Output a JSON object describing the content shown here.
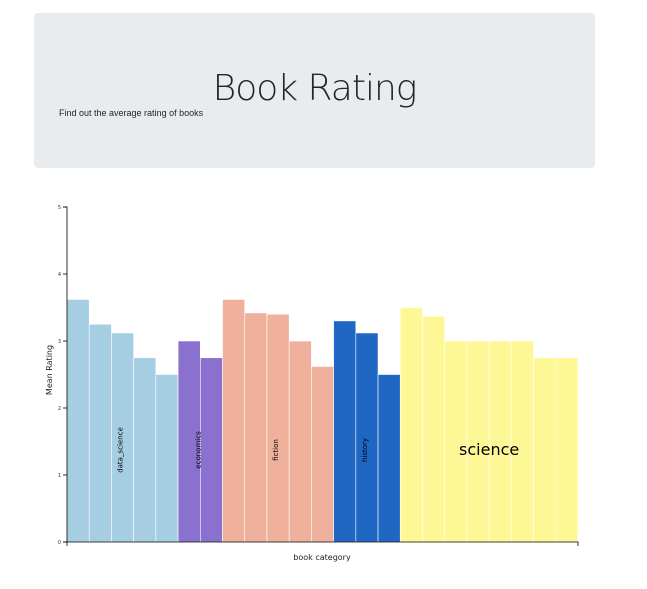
{
  "header": {
    "title": "Book Rating",
    "subtitle": "Find out the average rating of books"
  },
  "chart_data": {
    "type": "bar",
    "xlabel": "book category",
    "ylabel": "Mean Rating",
    "ylim": [
      0,
      5
    ],
    "yticks": [
      "0",
      "1",
      "2",
      "3",
      "4",
      "5"
    ],
    "grid": false,
    "groups": [
      {
        "name": "data_science",
        "color": "#a6cee3",
        "label_size": "small",
        "values": [
          3.62,
          3.25,
          3.12,
          2.75,
          2.5
        ]
      },
      {
        "name": "economics",
        "color": "#8a70cf",
        "label_size": "small",
        "values": [
          3.0,
          2.75
        ]
      },
      {
        "name": "fiction",
        "color": "#f0b19c",
        "label_size": "small",
        "values": [
          3.62,
          3.42,
          3.4,
          3.0,
          2.62
        ]
      },
      {
        "name": "history",
        "color": "#1f67c2",
        "label_size": "small",
        "values": [
          3.3,
          3.12,
          2.5
        ]
      },
      {
        "name": "science",
        "color": "#fdf796",
        "label_size": "large",
        "values": [
          3.5,
          3.37,
          3.0,
          3.0,
          3.0,
          3.0,
          2.75,
          2.75
        ]
      }
    ]
  }
}
